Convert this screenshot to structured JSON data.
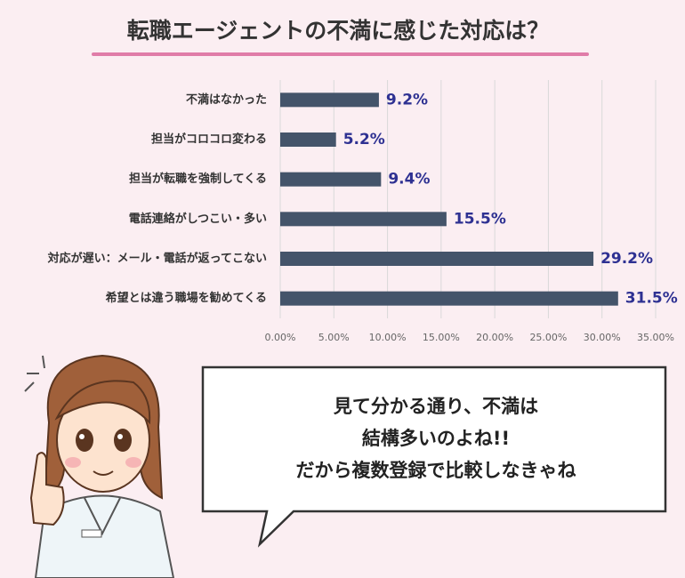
{
  "chart_data": {
    "type": "barh",
    "title": "転職エージェントの不満に感じた対応は？",
    "categories": [
      "不満はなかった",
      "担当がコロコロ変わる",
      "担当が転職を強制してくる",
      "電話連絡がしつこい・多い",
      "対応が遅い：メール・電話が返ってこない",
      "希望とは違う職場を勧めてくる"
    ],
    "values": [
      9.2,
      5.2,
      9.4,
      15.5,
      29.2,
      31.5
    ],
    "value_labels": [
      "9.2%",
      "5.2%",
      "9.4%",
      "15.5%",
      "29.2%",
      "31.5%"
    ],
    "color": "#44546a",
    "xlim": [
      0,
      35
    ],
    "xticks": [
      {
        "value": 0,
        "label": "0.00%"
      },
      {
        "value": 5,
        "label": "5.00%"
      },
      {
        "value": 10,
        "label": "10.00%"
      },
      {
        "value": 15,
        "label": "15.00%"
      },
      {
        "value": 20,
        "label": "20.00%"
      },
      {
        "value": 25,
        "label": "25.00%"
      },
      {
        "value": 30,
        "label": "30.00%"
      },
      {
        "value": 35,
        "label": "35.00%"
      }
    ],
    "grid": true
  },
  "speech_bubble": {
    "lines": [
      "見て分かる通り、不満は",
      "結構多いのよね!!",
      "だから複数登録で比較しなきゃね"
    ]
  }
}
